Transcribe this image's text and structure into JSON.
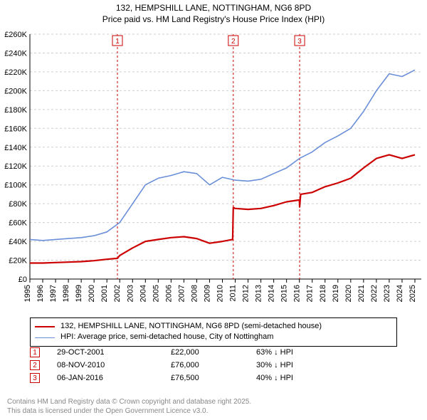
{
  "title_line1": "132, HEMPSHILL LANE, NOTTINGHAM, NG6 8PD",
  "title_line2": "Price paid vs. HM Land Registry's House Price Index (HPI)",
  "chart": {
    "type": "line",
    "background_color": "#ffffff",
    "grid_color": "#cfcfcf",
    "grid_dash": "3,3",
    "axis_color": "#000000",
    "xlim": [
      1995,
      2025.5
    ],
    "ylim": [
      0,
      260000
    ],
    "ytick_step": 20000,
    "yticks": [
      "£0",
      "£20K",
      "£40K",
      "£60K",
      "£80K",
      "£100K",
      "£120K",
      "£140K",
      "£160K",
      "£180K",
      "£200K",
      "£220K",
      "£240K",
      "£260K"
    ],
    "xticks": [
      1995,
      1996,
      1997,
      1998,
      1999,
      2000,
      2001,
      2002,
      2003,
      2004,
      2005,
      2006,
      2007,
      2008,
      2009,
      2010,
      2011,
      2012,
      2013,
      2014,
      2015,
      2016,
      2017,
      2018,
      2019,
      2020,
      2021,
      2022,
      2023,
      2024,
      2025
    ],
    "axis_fontsize": 11,
    "marker_line_color": "#cc0000",
    "marker_line_dash": "3,3",
    "markers": [
      {
        "n": "1",
        "year": 2001.82
      },
      {
        "n": "2",
        "year": 2010.85
      },
      {
        "n": "3",
        "year": 2016.02
      }
    ],
    "series": [
      {
        "name": "HPI: Average price, semi-detached house, City of Nottingham",
        "color": "#6a8fd8",
        "width": 1.6,
        "points": [
          [
            1995,
            42000
          ],
          [
            1996,
            41000
          ],
          [
            1997,
            42000
          ],
          [
            1998,
            43000
          ],
          [
            1999,
            44000
          ],
          [
            2000,
            46000
          ],
          [
            2001,
            50000
          ],
          [
            2002,
            60000
          ],
          [
            2003,
            80000
          ],
          [
            2004,
            100000
          ],
          [
            2005,
            107000
          ],
          [
            2006,
            110000
          ],
          [
            2007,
            114000
          ],
          [
            2008,
            112000
          ],
          [
            2009,
            100000
          ],
          [
            2010,
            108000
          ],
          [
            2011,
            105000
          ],
          [
            2012,
            104000
          ],
          [
            2013,
            106000
          ],
          [
            2014,
            112000
          ],
          [
            2015,
            118000
          ],
          [
            2016,
            128000
          ],
          [
            2017,
            135000
          ],
          [
            2018,
            145000
          ],
          [
            2019,
            152000
          ],
          [
            2020,
            160000
          ],
          [
            2021,
            178000
          ],
          [
            2022,
            200000
          ],
          [
            2023,
            218000
          ],
          [
            2024,
            215000
          ],
          [
            2025,
            222000
          ]
        ]
      },
      {
        "name": "132, HEMPSHILL LANE, NOTTINGHAM, NG6 8PD (semi-detached house)",
        "color": "#cc0000",
        "width": 2.2,
        "points": [
          [
            1995,
            17000
          ],
          [
            1996,
            17000
          ],
          [
            1997,
            17500
          ],
          [
            1998,
            18000
          ],
          [
            1999,
            18500
          ],
          [
            2000,
            19500
          ],
          [
            2001,
            21000
          ],
          [
            2001.82,
            22000
          ],
          [
            2002,
            25000
          ],
          [
            2003,
            33000
          ],
          [
            2004,
            40000
          ],
          [
            2005,
            42000
          ],
          [
            2006,
            44000
          ],
          [
            2007,
            45000
          ],
          [
            2008,
            43000
          ],
          [
            2009,
            38000
          ],
          [
            2010,
            40000
          ],
          [
            2010.8,
            42000
          ],
          [
            2010.85,
            76000
          ],
          [
            2011,
            75000
          ],
          [
            2012,
            74000
          ],
          [
            2013,
            75000
          ],
          [
            2014,
            78000
          ],
          [
            2015,
            82000
          ],
          [
            2016,
            84000
          ],
          [
            2016.02,
            76500
          ],
          [
            2016.1,
            90000
          ],
          [
            2017,
            92000
          ],
          [
            2018,
            98000
          ],
          [
            2019,
            102000
          ],
          [
            2020,
            107000
          ],
          [
            2021,
            118000
          ],
          [
            2022,
            128000
          ],
          [
            2023,
            132000
          ],
          [
            2024,
            128000
          ],
          [
            2025,
            132000
          ]
        ]
      }
    ]
  },
  "legend": {
    "items": [
      {
        "label": "132, HEMPSHILL LANE, NOTTINGHAM, NG6 8PD (semi-detached house)",
        "color": "#cc0000",
        "width": 2
      },
      {
        "label": "HPI: Average price, semi-detached house, City of Nottingham",
        "color": "#6a8fd8",
        "width": 1
      }
    ]
  },
  "sale_markers": [
    {
      "n": "1",
      "date": "29-OCT-2001",
      "price": "£22,000",
      "delta": "63% ↓ HPI"
    },
    {
      "n": "2",
      "date": "08-NOV-2010",
      "price": "£76,000",
      "delta": "30% ↓ HPI"
    },
    {
      "n": "3",
      "date": "06-JAN-2016",
      "price": "£76,500",
      "delta": "40% ↓ HPI"
    }
  ],
  "marker_box_color": "#cc0000",
  "footer_line1": "Contains HM Land Registry data © Crown copyright and database right 2025.",
  "footer_line2": "This data is licensed under the Open Government Licence v3.0."
}
